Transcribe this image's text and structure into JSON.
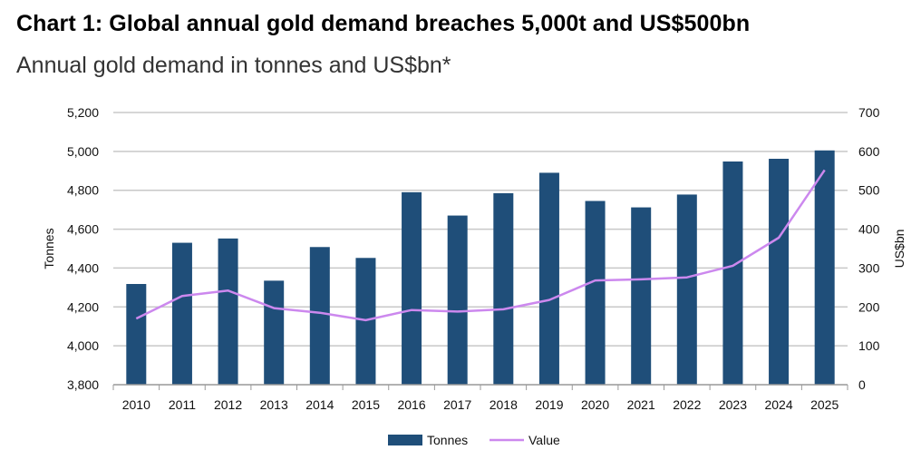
{
  "chart_data": {
    "type": "bar",
    "title": "Chart 1: Global annual gold demand breaches 5,000t and US$500bn",
    "subtitle": "Annual gold demand in tonnes and US$bn*",
    "categories": [
      "2010",
      "2011",
      "2012",
      "2013",
      "2014",
      "2015",
      "2016",
      "2017",
      "2018",
      "2019",
      "2020",
      "2021",
      "2022",
      "2023",
      "2024",
      "2025"
    ],
    "series": [
      {
        "name": "Tonnes",
        "type": "bar",
        "axis": "left",
        "color": "#1f4e79",
        "values": [
          4318,
          4530,
          4552,
          4335,
          4508,
          4452,
          4790,
          4670,
          4785,
          4890,
          4745,
          4712,
          4778,
          4948,
          4962,
          5005
        ]
      },
      {
        "name": "Value",
        "type": "line",
        "axis": "right",
        "color": "#cc88ee",
        "values": [
          170,
          228,
          242,
          197,
          185,
          166,
          192,
          188,
          194,
          218,
          268,
          271,
          276,
          306,
          378,
          552
        ]
      }
    ],
    "ylabel": "Tonnes",
    "ylabel_right": "US$bn",
    "ylim": [
      3800,
      5200
    ],
    "yticks": [
      3800,
      4000,
      4200,
      4400,
      4600,
      4800,
      5000,
      5200
    ],
    "ytick_labels": [
      "3,800",
      "4,000",
      "4,200",
      "4,400",
      "4,600",
      "4,800",
      "5,000",
      "5,200"
    ],
    "ylim_right": [
      0,
      700
    ],
    "yticks_right": [
      0,
      100,
      200,
      300,
      400,
      500,
      600,
      700
    ],
    "ytick_labels_right": [
      "0",
      "100",
      "200",
      "300",
      "400",
      "500",
      "600",
      "700"
    ],
    "grid": true,
    "legend": "bottom-center"
  }
}
